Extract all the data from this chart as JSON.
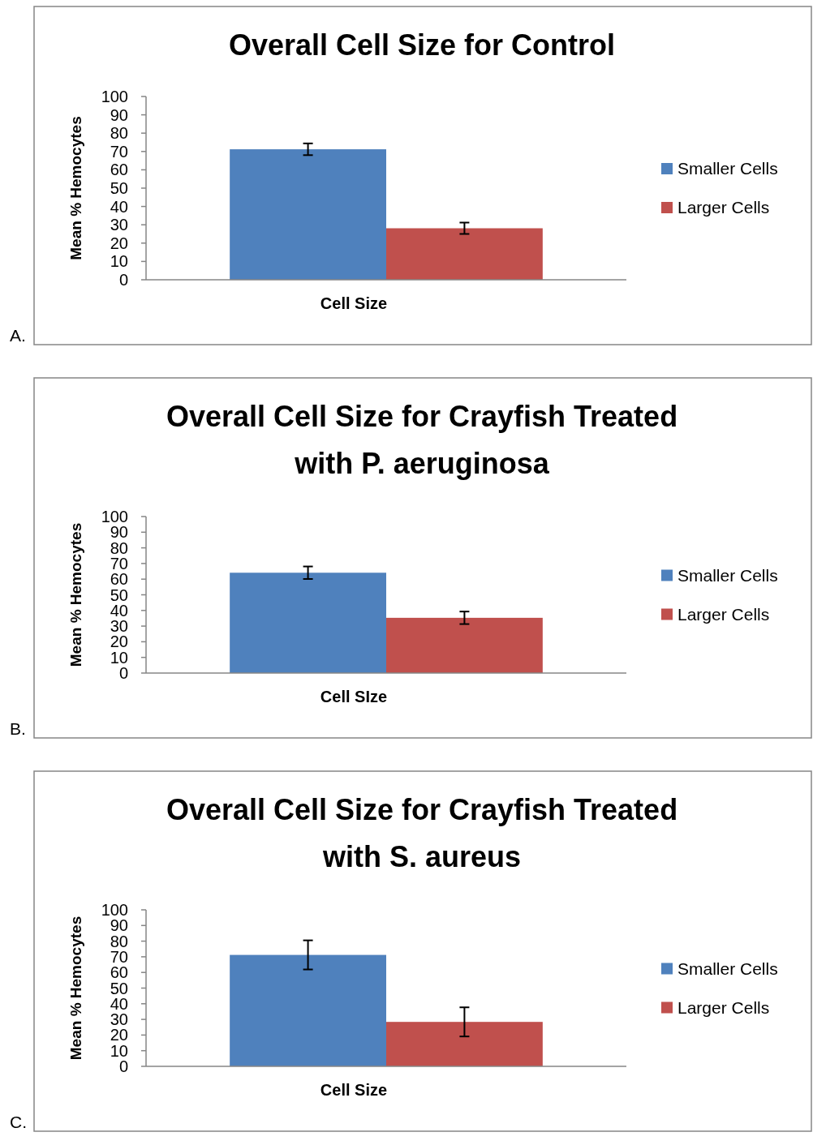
{
  "chart_data": [
    {
      "type": "bar",
      "title": "Overall Cell Size for Control",
      "xlabel": "Cell Size",
      "ylabel": "Mean % Hemocytes",
      "categories": [
        null
      ],
      "annotations": [
        "A."
      ],
      "legend": "right",
      "ylim": [
        0,
        100
      ],
      "yticks": [
        0,
        10,
        20,
        30,
        40,
        50,
        60,
        70,
        80,
        90,
        100
      ],
      "series": [
        {
          "name": "Smaller Cells",
          "color": "#4f81bd",
          "values": [
            71.2
          ],
          "errors": [
            3.2
          ]
        },
        {
          "name": "Larger Cells",
          "color": "#c0504d",
          "values": [
            28.1
          ],
          "errors": [
            3.1
          ]
        }
      ]
    },
    {
      "type": "bar",
      "title": "Overall Cell Size for Crayfish Treated with P. aeruginosa",
      "xlabel": "Cell SIze",
      "ylabel": "Mean % Hemocytes",
      "categories": [
        null
      ],
      "annotations": [
        "B."
      ],
      "legend": "right",
      "ylim": [
        0,
        100
      ],
      "yticks": [
        0,
        10,
        20,
        30,
        40,
        50,
        60,
        70,
        80,
        90,
        100
      ],
      "series": [
        {
          "name": "Smaller Cells",
          "color": "#4f81bd",
          "values": [
            64.1
          ],
          "errors": [
            4
          ]
        },
        {
          "name": "Larger Cells",
          "color": "#c0504d",
          "values": [
            35.3
          ],
          "errors": [
            4
          ]
        }
      ]
    },
    {
      "type": "bar",
      "title": "Overall Cell Size for Crayfish Treated with S. aureus",
      "xlabel": "Cell Size",
      "ylabel": "Mean % Hemocytes",
      "categories": [
        null
      ],
      "annotations": [
        "C."
      ],
      "legend": "right",
      "ylim": [
        0,
        100
      ],
      "yticks": [
        0,
        10,
        20,
        30,
        40,
        50,
        60,
        70,
        80,
        90,
        100
      ],
      "series": [
        {
          "name": "Smaller Cells",
          "color": "#4f81bd",
          "values": [
            71.2
          ],
          "errors": [
            9.3
          ]
        },
        {
          "name": "Larger Cells",
          "color": "#c0504d",
          "values": [
            28.4
          ],
          "errors": [
            9.3
          ]
        }
      ]
    }
  ]
}
